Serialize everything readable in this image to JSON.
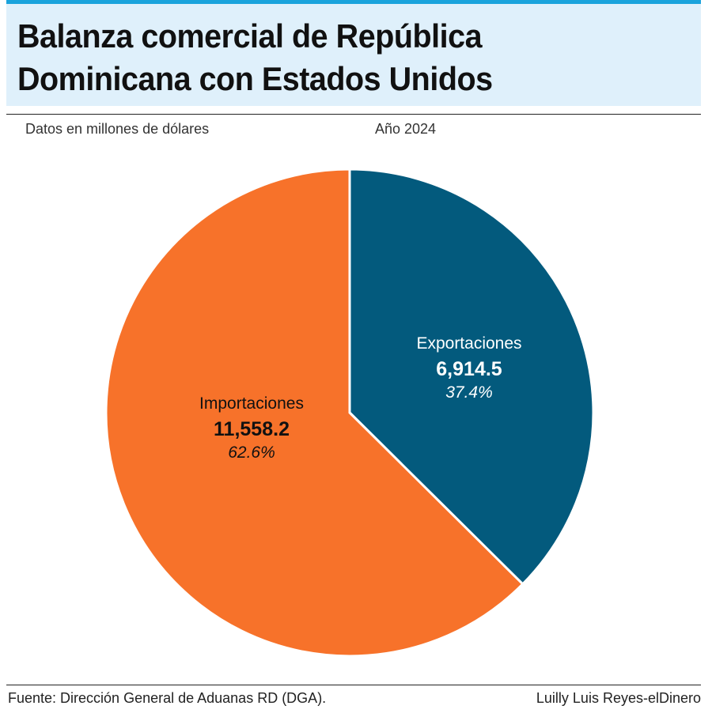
{
  "header": {
    "title_line1": "Balanza comercial de República",
    "title_line2": "Dominicana con Estados Unidos",
    "subtitle": "Datos en millones de dólares",
    "year_label": "Año 2024",
    "accent_color": "#1aa3dc",
    "band_color": "#dff0fb"
  },
  "chart_data": {
    "type": "pie",
    "slices": [
      {
        "label": "Exportaciones",
        "value": 6914.5,
        "value_label": "6,914.5",
        "percent_label": "37.4%",
        "color": "#035a7d"
      },
      {
        "label": "Importaciones",
        "value": 11558.2,
        "value_label": "11,558.2",
        "percent_label": "62.6%",
        "color": "#f7722a"
      }
    ],
    "start": "top",
    "direction": "clockwise"
  },
  "footer": {
    "source": "Fuente: Dirección General de Aduanas RD (DGA).",
    "credit": "Luilly Luis Reyes-elDinero"
  }
}
